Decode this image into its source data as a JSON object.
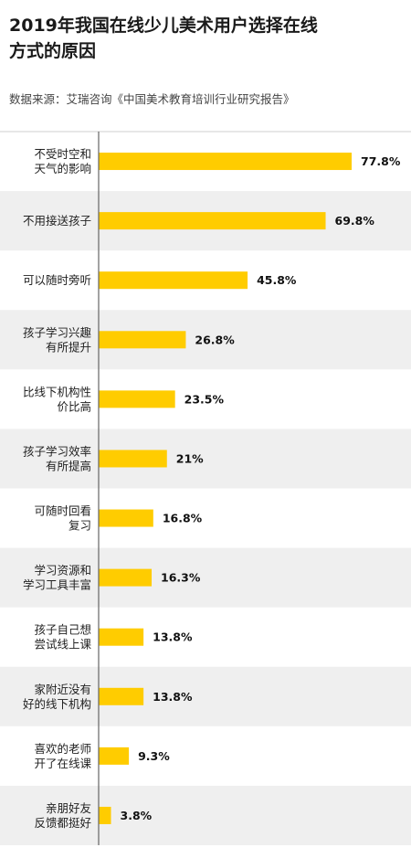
{
  "chart_data": {
    "type": "bar",
    "orientation": "horizontal",
    "title_lines": [
      "2019年我国在线少儿美术用户选择在线",
      "方式的原因"
    ],
    "source": "数据来源：艾瑞咨询《中国美术教育培训行业研究报告》",
    "categories": [
      [
        "不受时空和",
        "天气的影响"
      ],
      [
        "不用接送孩子"
      ],
      [
        "可以随时旁听"
      ],
      [
        "孩子学习兴趣",
        "有所提升"
      ],
      [
        "比线下机构性",
        "价比高"
      ],
      [
        "孩子学习效率",
        "有所提高"
      ],
      [
        "可随时回看",
        "复习"
      ],
      [
        "学习资源和",
        "学习工具丰富"
      ],
      [
        "孩子自己想",
        "尝试线上课"
      ],
      [
        "家附近没有",
        "好的线下机构"
      ],
      [
        "喜欢的老师",
        "开了在线课"
      ],
      [
        "亲朋好友",
        "反馈都挺好"
      ]
    ],
    "values": [
      77.8,
      69.8,
      45.8,
      26.8,
      23.5,
      21,
      16.8,
      16.3,
      13.8,
      13.8,
      9.3,
      3.8
    ],
    "value_labels": [
      "77.8%",
      "69.8%",
      "45.8%",
      "26.8%",
      "23.5%",
      "21%",
      "16.8%",
      "16.3%",
      "13.8%",
      "13.8%",
      "9.3%",
      "3.8%"
    ],
    "xlim": [
      0,
      80
    ],
    "bar_color": "#ffcc00",
    "stripe_color": "#efefef",
    "axis_color": "#666666",
    "legend": "none",
    "grid": false
  }
}
